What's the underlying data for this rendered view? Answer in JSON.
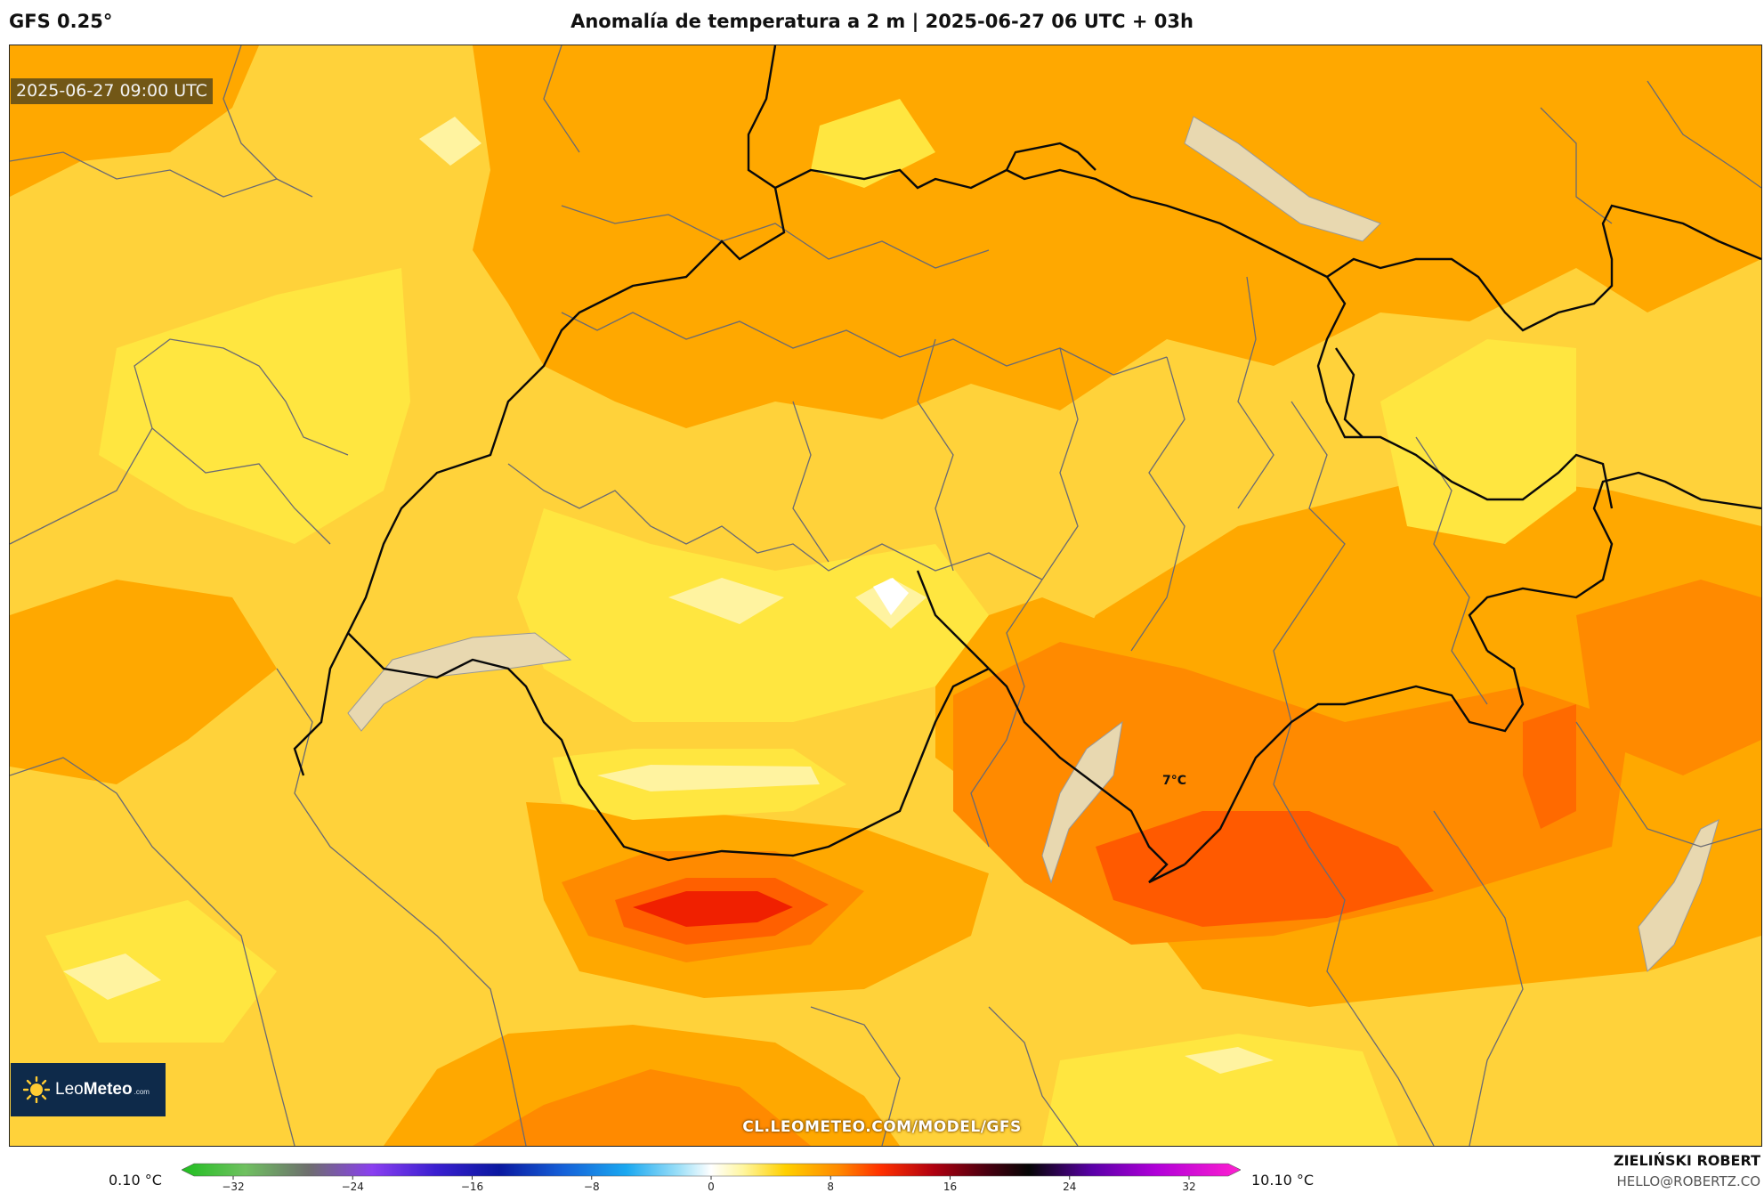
{
  "header": {
    "model": "GFS 0.25°",
    "title": "Anomalía de temperatura a 2 m | 2025-06-27 06 UTC + 03h"
  },
  "map": {
    "valid_time": "2025-06-27 09:00 UTC",
    "point_label": "7°C",
    "source": "CL.LEOMETEO.COM/MODEL/GFS"
  },
  "logo": {
    "brand_light": "Leo",
    "brand_bold": "Meteo",
    "suffix": ".com"
  },
  "colorbar": {
    "min_label": "0.10 °C",
    "max_label": "10.10 °C",
    "ticks": [
      "−32",
      "−24",
      "−16",
      "−8",
      "0",
      "8",
      "16",
      "24",
      "32"
    ]
  },
  "author": {
    "name": "ZIELIŃSKI ROBERT",
    "email": "HELLO@ROBERTZ.CO"
  },
  "colors": {
    "background": "#ffd23a",
    "pale": "#fff3a0",
    "light_yellow": "#ffe640",
    "orange": "#ffa800",
    "deep_orange": "#ff8000",
    "red_orange": "#ff5000",
    "red": "#f02000",
    "lake": "#e8d8b0",
    "logo_bg": "#0e2a4a"
  }
}
